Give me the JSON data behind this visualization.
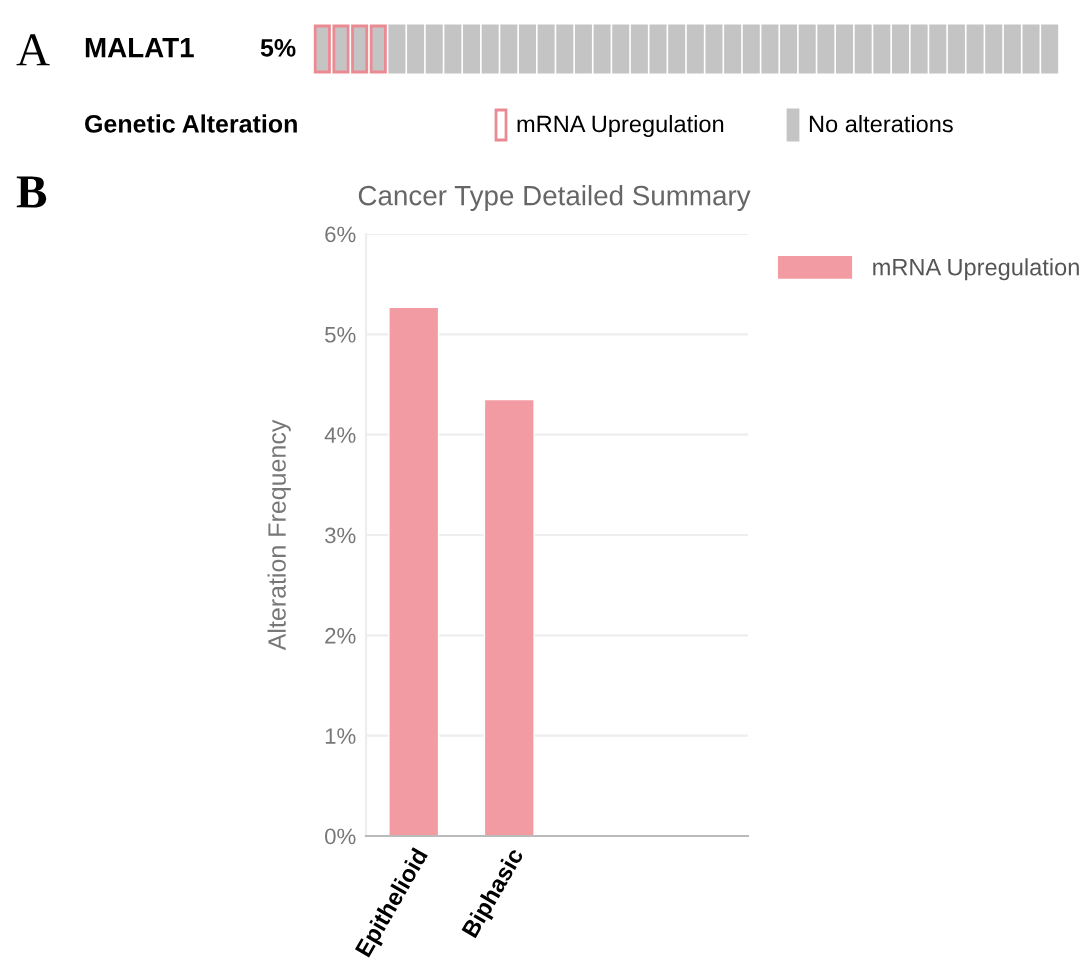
{
  "chart_data": [
    {
      "type": "other",
      "annotations": [
        "A",
        "MALAT1",
        "5%",
        "Genetic Alteration",
        "mRNA Upregulation",
        "No alterations"
      ]
    },
    {
      "type": "bar",
      "title": "Cancer Type Detailed Summary",
      "annotations": [
        "B"
      ],
      "ylabel": "Alteration Frequency",
      "categories": [
        "Epithelioid",
        "Biphasic"
      ],
      "series": [
        {
          "name": "mRNA Upregulation",
          "color": "#f39ba3",
          "values": [
            5.27,
            4.35
          ]
        }
      ],
      "ylim": [
        0,
        6
      ],
      "yticks": [
        {
          "value": 0,
          "label": "0%"
        },
        {
          "value": 1,
          "label": "1%"
        },
        {
          "value": 2,
          "label": "2%"
        },
        {
          "value": 3,
          "label": "3%"
        },
        {
          "value": 4,
          "label": "4%"
        },
        {
          "value": 5,
          "label": "5%"
        },
        {
          "value": 6,
          "label": "6%"
        }
      ],
      "grid": "y",
      "legend": "top right"
    }
  ]
}
